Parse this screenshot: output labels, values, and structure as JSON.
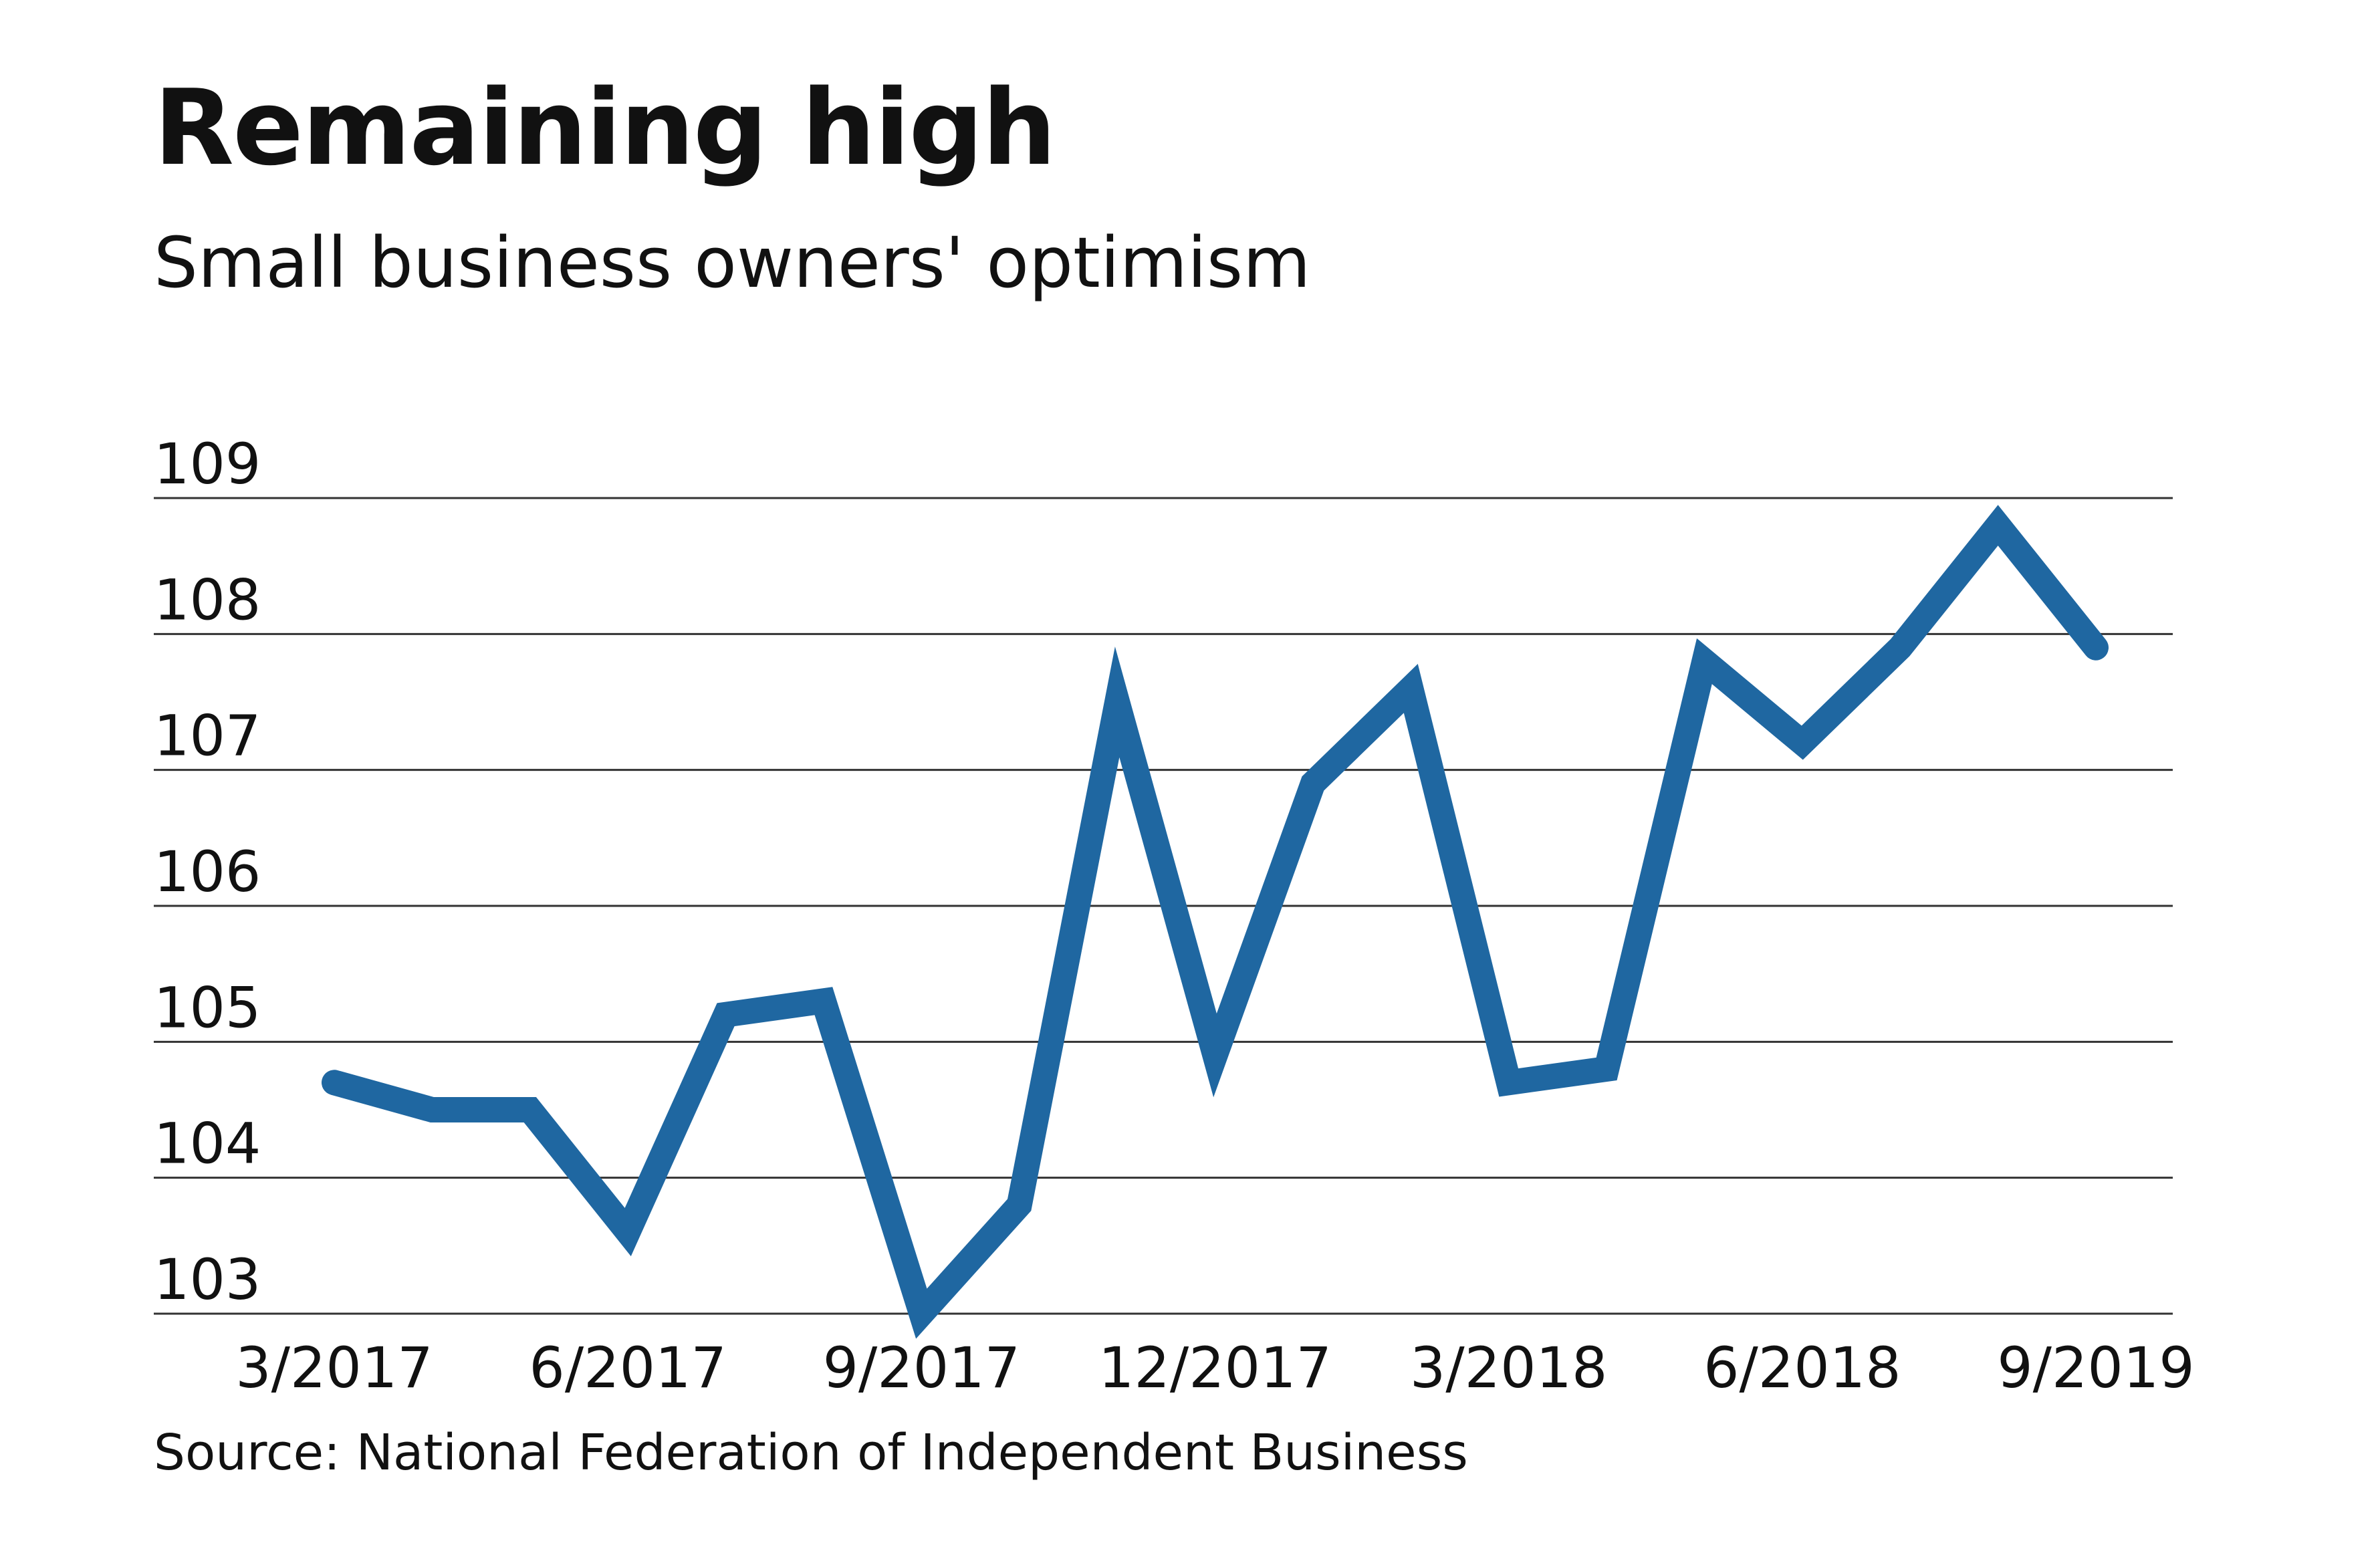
{
  "header": {
    "title": "Remaining high",
    "subtitle": "Small business owners' optimism"
  },
  "footer": {
    "source": "Source: National Federation of Independent Business"
  },
  "colors": {
    "line": "#1f67a1",
    "grid": "#333333",
    "text": "#111111"
  },
  "chart_data": {
    "type": "line",
    "title": "Remaining high",
    "subtitle": "Small business owners' optimism",
    "xlabel": "",
    "ylabel": "",
    "ylim": [
      103,
      109
    ],
    "yticks": [
      103,
      104,
      105,
      106,
      107,
      108,
      109
    ],
    "grid": true,
    "legend": "none",
    "x_tick_labels": [
      {
        "label": "3/2017",
        "index": 0
      },
      {
        "label": "6/2017",
        "index": 3
      },
      {
        "label": "9/2017",
        "index": 6
      },
      {
        "label": "12/2017",
        "index": 9
      },
      {
        "label": "3/2018",
        "index": 12
      },
      {
        "label": "6/2018",
        "index": 15
      },
      {
        "label": "9/2019",
        "index": 18
      }
    ],
    "series": [
      {
        "values": [
          104.7,
          104.5,
          104.5,
          103.6,
          105.2,
          105.3,
          103.0,
          103.8,
          107.5,
          104.9,
          106.9,
          107.6,
          104.7,
          104.8,
          107.8,
          107.2,
          107.9,
          108.8,
          107.9
        ]
      }
    ]
  }
}
